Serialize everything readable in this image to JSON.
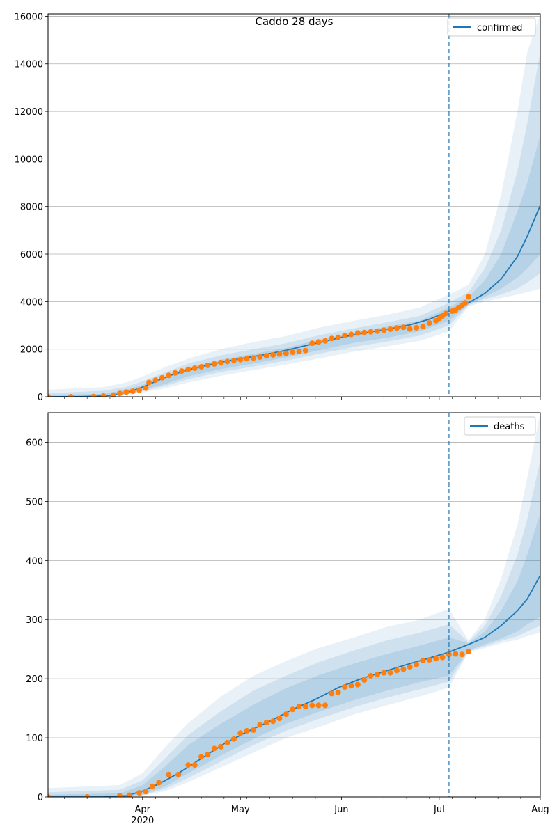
{
  "colors": {
    "model_line": "#1f77b4",
    "band_fill": "#1f77b4",
    "observed_points": "#ff7f0e",
    "forecast_start_line": "#1f77b4",
    "grid": "#b0b0b0",
    "axis": "#000000",
    "background": "#ffffff"
  },
  "chart_data": [
    {
      "type": "line",
      "title": "Caddo 28 days",
      "legend": {
        "entries": [
          "confirmed"
        ],
        "placement": "top-right"
      },
      "x_axis": {
        "min": "2020-03-03",
        "max": "2020-08-01",
        "ticks": [
          {
            "date": "2020-04-01",
            "label": "Apr",
            "sublabel": "2020"
          },
          {
            "date": "2020-05-01",
            "label": "May"
          },
          {
            "date": "2020-06-01",
            "label": "Jun"
          },
          {
            "date": "2020-07-01",
            "label": "Jul"
          },
          {
            "date": "2020-08-01",
            "label": "Aug"
          }
        ],
        "minor_ticks": [
          "2020-03-08",
          "2020-03-15",
          "2020-03-22",
          "2020-03-29",
          "2020-04-05",
          "2020-04-12",
          "2020-04-19",
          "2020-04-26",
          "2020-05-03",
          "2020-05-10",
          "2020-05-17",
          "2020-05-24",
          "2020-05-31",
          "2020-06-07",
          "2020-06-14",
          "2020-06-21",
          "2020-06-28",
          "2020-07-05",
          "2020-07-12",
          "2020-07-19",
          "2020-07-26"
        ],
        "show_tick_labels": false
      },
      "y_axis": {
        "min": 0,
        "max": 16100,
        "ticks": [
          0,
          2000,
          4000,
          6000,
          8000,
          10000,
          12000,
          14000,
          16000
        ],
        "grid": true
      },
      "forecast_start": "2020-07-04",
      "series": [
        {
          "name": "confirmed",
          "kind": "model",
          "x": [
            "2020-03-03",
            "2020-03-13",
            "2020-03-18",
            "2020-03-22",
            "2020-03-25",
            "2020-03-28",
            "2020-03-31",
            "2020-04-03",
            "2020-04-06",
            "2020-04-10",
            "2020-04-15",
            "2020-04-20",
            "2020-04-25",
            "2020-05-01",
            "2020-05-08",
            "2020-05-15",
            "2020-05-21",
            "2020-05-25",
            "2020-06-01",
            "2020-06-08",
            "2020-06-15",
            "2020-06-22",
            "2020-06-28",
            "2020-07-04",
            "2020-07-10",
            "2020-07-15",
            "2020-07-20",
            "2020-07-25",
            "2020-07-28",
            "2020-08-01"
          ],
          "y": [
            0,
            5,
            20,
            60,
            120,
            220,
            350,
            520,
            700,
            920,
            1130,
            1300,
            1450,
            1600,
            1760,
            1950,
            2150,
            2270,
            2500,
            2680,
            2840,
            3020,
            3260,
            3600,
            3950,
            4350,
            4950,
            5900,
            6750,
            8050
          ]
        },
        {
          "name": "observed confirmed",
          "kind": "observed",
          "x": [
            "2020-03-03",
            "2020-03-10",
            "2020-03-17",
            "2020-03-20",
            "2020-03-23",
            "2020-03-25",
            "2020-03-27",
            "2020-03-29",
            "2020-03-31",
            "2020-04-02",
            "2020-04-03",
            "2020-04-05",
            "2020-04-07",
            "2020-04-09",
            "2020-04-11",
            "2020-04-13",
            "2020-04-15",
            "2020-04-17",
            "2020-04-19",
            "2020-04-21",
            "2020-04-23",
            "2020-04-25",
            "2020-04-27",
            "2020-04-29",
            "2020-05-01",
            "2020-05-03",
            "2020-05-05",
            "2020-05-07",
            "2020-05-09",
            "2020-05-11",
            "2020-05-13",
            "2020-05-15",
            "2020-05-17",
            "2020-05-19",
            "2020-05-21",
            "2020-05-23",
            "2020-05-25",
            "2020-05-27",
            "2020-05-29",
            "2020-05-31",
            "2020-06-02",
            "2020-06-04",
            "2020-06-06",
            "2020-06-08",
            "2020-06-10",
            "2020-06-12",
            "2020-06-14",
            "2020-06-16",
            "2020-06-18",
            "2020-06-20",
            "2020-06-22",
            "2020-06-24",
            "2020-06-26",
            "2020-06-28",
            "2020-06-30",
            "2020-07-01",
            "2020-07-02",
            "2020-07-03",
            "2020-07-05",
            "2020-07-06",
            "2020-07-07",
            "2020-07-08",
            "2020-07-09",
            "2020-07-10"
          ],
          "y": [
            0,
            0,
            10,
            30,
            70,
            140,
            200,
            230,
            280,
            360,
            600,
            700,
            800,
            900,
            1000,
            1080,
            1150,
            1200,
            1260,
            1320,
            1380,
            1440,
            1480,
            1520,
            1560,
            1600,
            1630,
            1670,
            1720,
            1760,
            1800,
            1830,
            1870,
            1900,
            1940,
            2250,
            2300,
            2350,
            2450,
            2500,
            2580,
            2620,
            2680,
            2700,
            2730,
            2760,
            2800,
            2840,
            2890,
            2920,
            2850,
            2900,
            2950,
            3100,
            3200,
            3300,
            3400,
            3500,
            3600,
            3650,
            3750,
            3850,
            3950,
            4200
          ]
        }
      ],
      "bands": [
        {
          "label": "band-outer",
          "opacity": 0.1,
          "x": [
            "2020-03-03",
            "2020-03-20",
            "2020-03-27",
            "2020-04-01",
            "2020-04-08",
            "2020-04-15",
            "2020-04-25",
            "2020-05-05",
            "2020-05-15",
            "2020-05-25",
            "2020-06-05",
            "2020-06-15",
            "2020-06-25",
            "2020-07-04",
            "2020-07-10",
            "2020-07-15",
            "2020-07-20",
            "2020-07-25",
            "2020-07-28",
            "2020-08-01"
          ],
          "low": [
            0,
            0,
            60,
            170,
            360,
            600,
            880,
            1120,
            1350,
            1600,
            1900,
            2120,
            2350,
            2750,
            3800,
            4000,
            4150,
            4300,
            4400,
            4550
          ],
          "high": [
            300,
            400,
            600,
            850,
            1250,
            1600,
            2000,
            2300,
            2550,
            2900,
            3200,
            3450,
            3750,
            4300,
            4700,
            6000,
            8500,
            12000,
            14500,
            16100
          ]
        },
        {
          "label": "band-middle",
          "opacity": 0.12,
          "x": [
            "2020-03-03",
            "2020-03-20",
            "2020-03-27",
            "2020-04-01",
            "2020-04-08",
            "2020-04-15",
            "2020-04-25",
            "2020-05-05",
            "2020-05-15",
            "2020-05-25",
            "2020-06-05",
            "2020-06-15",
            "2020-06-25",
            "2020-07-04",
            "2020-07-10",
            "2020-07-15",
            "2020-07-20",
            "2020-07-25",
            "2020-07-28",
            "2020-08-01"
          ],
          "low": [
            0,
            0,
            100,
            230,
            460,
            740,
            1040,
            1270,
            1520,
            1800,
            2100,
            2320,
            2570,
            3000,
            3850,
            4100,
            4300,
            4550,
            4800,
            5200
          ],
          "high": [
            150,
            250,
            420,
            650,
            1030,
            1400,
            1740,
            2000,
            2250,
            2580,
            2880,
            3130,
            3400,
            3950,
            4400,
            5400,
            7000,
            9500,
            11500,
            14500
          ]
        },
        {
          "label": "band-inner",
          "opacity": 0.14,
          "x": [
            "2020-03-03",
            "2020-03-20",
            "2020-03-27",
            "2020-04-01",
            "2020-04-08",
            "2020-04-15",
            "2020-04-25",
            "2020-05-05",
            "2020-05-15",
            "2020-05-25",
            "2020-06-05",
            "2020-06-15",
            "2020-06-25",
            "2020-07-04",
            "2020-07-10",
            "2020-07-15",
            "2020-07-20",
            "2020-07-25",
            "2020-07-28",
            "2020-08-01"
          ],
          "low": [
            0,
            10,
            150,
            290,
            540,
            860,
            1160,
            1400,
            1650,
            1950,
            2270,
            2480,
            2750,
            3200,
            3880,
            4200,
            4550,
            5000,
            5400,
            6000
          ],
          "high": [
            80,
            120,
            300,
            500,
            860,
            1220,
            1560,
            1800,
            2050,
            2400,
            2700,
            2950,
            3200,
            3750,
            4200,
            4900,
            6000,
            7800,
            9000,
            11000
          ]
        }
      ]
    },
    {
      "type": "line",
      "title": "",
      "legend": {
        "entries": [
          "deaths"
        ],
        "placement": "top-right"
      },
      "x_axis": {
        "min": "2020-03-03",
        "max": "2020-08-01",
        "ticks": [
          {
            "date": "2020-04-01",
            "label": "Apr",
            "sublabel": "2020"
          },
          {
            "date": "2020-05-01",
            "label": "May"
          },
          {
            "date": "2020-06-01",
            "label": "Jun"
          },
          {
            "date": "2020-07-01",
            "label": "Jul"
          },
          {
            "date": "2020-08-01",
            "label": "Aug"
          }
        ],
        "minor_ticks": [
          "2020-03-08",
          "2020-03-15",
          "2020-03-22",
          "2020-03-29",
          "2020-04-05",
          "2020-04-12",
          "2020-04-19",
          "2020-04-26",
          "2020-05-03",
          "2020-05-10",
          "2020-05-17",
          "2020-05-24",
          "2020-05-31",
          "2020-06-07",
          "2020-06-14",
          "2020-06-21",
          "2020-06-28",
          "2020-07-05",
          "2020-07-12",
          "2020-07-19",
          "2020-07-26"
        ],
        "show_tick_labels": true
      },
      "y_axis": {
        "min": 0,
        "max": 650,
        "ticks": [
          0,
          100,
          200,
          300,
          400,
          500,
          600
        ],
        "grid": true
      },
      "forecast_start": "2020-07-04",
      "series": [
        {
          "name": "deaths",
          "kind": "model",
          "x": [
            "2020-03-03",
            "2020-03-20",
            "2020-03-27",
            "2020-04-01",
            "2020-04-06",
            "2020-04-12",
            "2020-04-19",
            "2020-04-26",
            "2020-05-03",
            "2020-05-10",
            "2020-05-17",
            "2020-05-24",
            "2020-05-31",
            "2020-06-07",
            "2020-06-14",
            "2020-06-21",
            "2020-06-28",
            "2020-07-04",
            "2020-07-10",
            "2020-07-15",
            "2020-07-20",
            "2020-07-25",
            "2020-07-28",
            "2020-08-01"
          ],
          "y": [
            0,
            0,
            2,
            10,
            22,
            40,
            65,
            90,
            110,
            128,
            148,
            165,
            185,
            200,
            212,
            224,
            235,
            245,
            258,
            270,
            290,
            315,
            335,
            375
          ]
        },
        {
          "name": "observed deaths",
          "kind": "observed",
          "x": [
            "2020-03-03",
            "2020-03-15",
            "2020-03-25",
            "2020-03-28",
            "2020-03-31",
            "2020-04-02",
            "2020-04-04",
            "2020-04-06",
            "2020-04-09",
            "2020-04-12",
            "2020-04-15",
            "2020-04-17",
            "2020-04-19",
            "2020-04-21",
            "2020-04-23",
            "2020-04-25",
            "2020-04-27",
            "2020-04-29",
            "2020-05-01",
            "2020-05-03",
            "2020-05-05",
            "2020-05-07",
            "2020-05-09",
            "2020-05-11",
            "2020-05-13",
            "2020-05-15",
            "2020-05-17",
            "2020-05-19",
            "2020-05-21",
            "2020-05-23",
            "2020-05-25",
            "2020-05-27",
            "2020-05-29",
            "2020-05-31",
            "2020-06-02",
            "2020-06-04",
            "2020-06-06",
            "2020-06-08",
            "2020-06-10",
            "2020-06-12",
            "2020-06-14",
            "2020-06-16",
            "2020-06-18",
            "2020-06-20",
            "2020-06-22",
            "2020-06-24",
            "2020-06-26",
            "2020-06-28",
            "2020-06-30",
            "2020-07-02",
            "2020-07-04",
            "2020-07-06",
            "2020-07-08",
            "2020-07-10"
          ],
          "y": [
            0,
            0,
            2,
            3,
            7,
            9,
            18,
            24,
            38,
            38,
            54,
            54,
            68,
            72,
            82,
            85,
            92,
            98,
            108,
            112,
            113,
            122,
            126,
            128,
            133,
            140,
            148,
            153,
            153,
            155,
            155,
            155,
            175,
            177,
            186,
            188,
            190,
            198,
            205,
            207,
            210,
            210,
            214,
            216,
            220,
            224,
            231,
            232,
            234,
            236,
            241,
            242,
            241,
            246
          ]
        }
      ],
      "bands": [
        {
          "label": "band-outer",
          "opacity": 0.1,
          "x": [
            "2020-03-03",
            "2020-03-25",
            "2020-04-01",
            "2020-04-08",
            "2020-04-15",
            "2020-04-25",
            "2020-05-05",
            "2020-05-15",
            "2020-05-25",
            "2020-06-05",
            "2020-06-15",
            "2020-06-25",
            "2020-07-04",
            "2020-07-10",
            "2020-07-15",
            "2020-07-20",
            "2020-07-25",
            "2020-07-28",
            "2020-08-01"
          ],
          "low": [
            0,
            0,
            2,
            10,
            25,
            50,
            75,
            100,
            118,
            140,
            155,
            170,
            185,
            245,
            252,
            260,
            266,
            272,
            278
          ],
          "high": [
            15,
            20,
            40,
            85,
            125,
            170,
            205,
            230,
            252,
            270,
            288,
            300,
            318,
            265,
            300,
            370,
            460,
            540,
            650
          ]
        },
        {
          "label": "band-middle",
          "opacity": 0.12,
          "x": [
            "2020-03-03",
            "2020-03-25",
            "2020-04-01",
            "2020-04-08",
            "2020-04-15",
            "2020-04-25",
            "2020-05-05",
            "2020-05-15",
            "2020-05-25",
            "2020-06-05",
            "2020-06-15",
            "2020-06-25",
            "2020-07-04",
            "2020-07-10",
            "2020-07-15",
            "2020-07-20",
            "2020-07-25",
            "2020-07-28",
            "2020-08-01"
          ],
          "low": [
            0,
            0,
            3,
            14,
            32,
            60,
            88,
            112,
            132,
            152,
            168,
            182,
            195,
            246,
            255,
            264,
            272,
            280,
            290
          ],
          "high": [
            8,
            12,
            28,
            66,
            105,
            145,
            180,
            205,
            228,
            248,
            265,
            278,
            292,
            262,
            290,
            340,
            410,
            470,
            570
          ]
        },
        {
          "label": "band-inner",
          "opacity": 0.14,
          "x": [
            "2020-03-03",
            "2020-03-25",
            "2020-04-01",
            "2020-04-08",
            "2020-04-15",
            "2020-04-25",
            "2020-05-05",
            "2020-05-15",
            "2020-05-25",
            "2020-06-05",
            "2020-06-15",
            "2020-06-25",
            "2020-07-04",
            "2020-07-10",
            "2020-07-15",
            "2020-07-20",
            "2020-07-25",
            "2020-07-28",
            "2020-08-01"
          ],
          "low": [
            0,
            0,
            4,
            18,
            40,
            70,
            98,
            124,
            144,
            164,
            180,
            194,
            205,
            248,
            258,
            268,
            280,
            292,
            305
          ],
          "high": [
            4,
            6,
            20,
            52,
            88,
            124,
            156,
            184,
            206,
            226,
            242,
            256,
            270,
            260,
            280,
            315,
            365,
            410,
            480
          ]
        }
      ]
    }
  ]
}
